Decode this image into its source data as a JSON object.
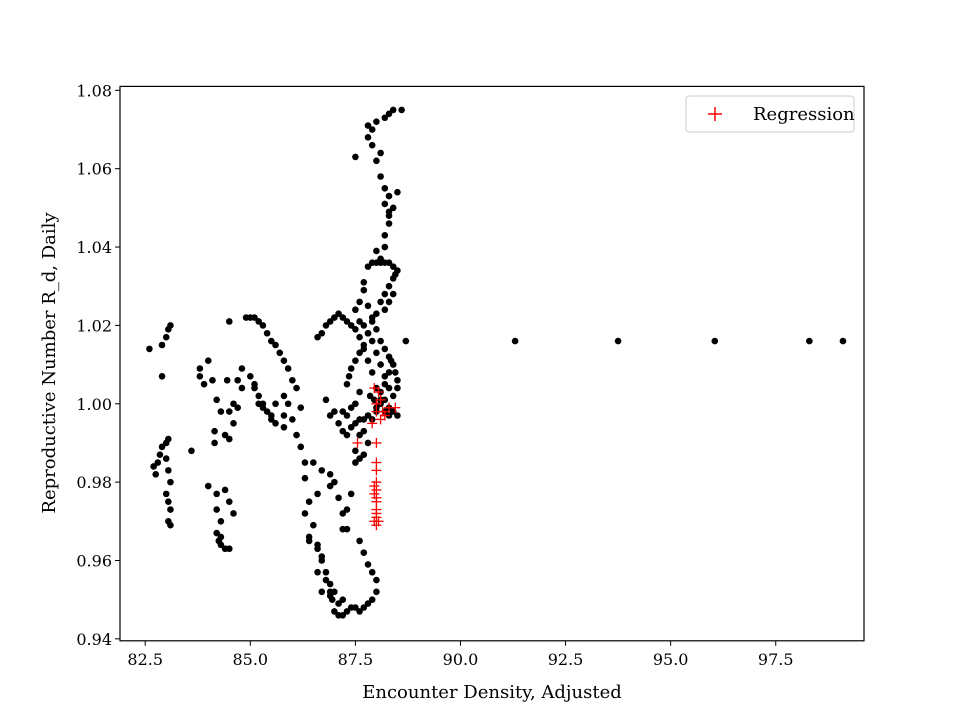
{
  "chart_data": {
    "type": "scatter",
    "title": "",
    "xlabel": "Encounter Density, Adjusted",
    "ylabel": "Reproductive Number R_d, Daily",
    "xlim": [
      81.9,
      99.6
    ],
    "ylim": [
      0.9395,
      1.081
    ],
    "xticks": [
      82.5,
      85.0,
      87.5,
      90.0,
      92.5,
      95.0,
      97.5
    ],
    "xtick_labels": [
      "82.5",
      "85.0",
      "87.5",
      "90.0",
      "92.5",
      "95.0",
      "97.5"
    ],
    "yticks": [
      0.94,
      0.96,
      0.98,
      1.0,
      1.02,
      1.04,
      1.06,
      1.08
    ],
    "ytick_labels": [
      "0.94",
      "0.96",
      "0.98",
      "1.00",
      "1.02",
      "1.04",
      "1.06",
      "1.08"
    ],
    "grid": false,
    "legend_position": "top-right",
    "series": [
      {
        "label": "",
        "marker": "circle",
        "color": "#000000",
        "points": [
          [
            82.6,
            1.014
          ],
          [
            82.9,
            1.015
          ],
          [
            83.0,
            1.017
          ],
          [
            83.05,
            1.019
          ],
          [
            83.1,
            1.02
          ],
          [
            82.9,
            1.007
          ],
          [
            82.7,
            0.984
          ],
          [
            82.75,
            0.982
          ],
          [
            82.8,
            0.985
          ],
          [
            82.85,
            0.987
          ],
          [
            82.9,
            0.989
          ],
          [
            83.0,
            0.99
          ],
          [
            83.05,
            0.991
          ],
          [
            83.0,
            0.986
          ],
          [
            83.05,
            0.983
          ],
          [
            83.1,
            0.98
          ],
          [
            83.0,
            0.977
          ],
          [
            83.05,
            0.975
          ],
          [
            83.1,
            0.973
          ],
          [
            83.05,
            0.97
          ],
          [
            83.1,
            0.969
          ],
          [
            83.6,
            0.988
          ],
          [
            83.8,
            1.009
          ],
          [
            83.8,
            1.007
          ],
          [
            83.9,
            1.005
          ],
          [
            84.0,
            1.011
          ],
          [
            84.1,
            1.006
          ],
          [
            84.2,
            1.001
          ],
          [
            84.3,
            0.998
          ],
          [
            84.15,
            0.993
          ],
          [
            84.15,
            0.99
          ],
          [
            84.4,
            0.992
          ],
          [
            84.5,
            0.991
          ],
          [
            84.6,
            0.995
          ],
          [
            84.5,
            0.998
          ],
          [
            84.6,
            1.0
          ],
          [
            84.7,
            0.999
          ],
          [
            84.0,
            0.979
          ],
          [
            84.2,
            0.977
          ],
          [
            84.4,
            0.978
          ],
          [
            84.5,
            0.975
          ],
          [
            84.6,
            0.972
          ],
          [
            84.2,
            0.973
          ],
          [
            84.3,
            0.97
          ],
          [
            84.2,
            0.967
          ],
          [
            84.25,
            0.965
          ],
          [
            84.3,
            0.964
          ],
          [
            84.4,
            0.963
          ],
          [
            84.5,
            0.963
          ],
          [
            84.3,
            0.966
          ],
          [
            84.45,
            1.006
          ],
          [
            84.7,
            1.006
          ],
          [
            84.5,
            1.021
          ],
          [
            84.8,
            1.009
          ],
          [
            84.8,
            1.004
          ],
          [
            84.9,
            1.022
          ],
          [
            85.0,
            1.022
          ],
          [
            85.1,
            1.022
          ],
          [
            85.2,
            1.021
          ],
          [
            85.3,
            1.02
          ],
          [
            85.4,
            1.018
          ],
          [
            85.5,
            1.016
          ],
          [
            85.6,
            1.015
          ],
          [
            85.7,
            1.013
          ],
          [
            85.8,
            1.011
          ],
          [
            85.9,
            1.009
          ],
          [
            86.0,
            1.006
          ],
          [
            86.1,
            1.004
          ],
          [
            85.0,
            1.007
          ],
          [
            85.1,
            1.005
          ],
          [
            85.2,
            1.002
          ],
          [
            85.3,
            1.0
          ],
          [
            85.4,
            0.998
          ],
          [
            85.5,
            0.997
          ],
          [
            85.6,
            1.0
          ],
          [
            85.8,
            1.002
          ],
          [
            85.9,
            1.0
          ],
          [
            86.0,
            0.996
          ],
          [
            86.1,
            0.992
          ],
          [
            85.8,
            0.994
          ],
          [
            85.5,
            0.996
          ],
          [
            85.6,
            0.995
          ],
          [
            85.1,
            1.004
          ],
          [
            85.2,
            1.0
          ],
          [
            85.3,
            0.999
          ],
          [
            85.8,
            0.997
          ],
          [
            86.2,
            0.999
          ],
          [
            86.2,
            0.989
          ],
          [
            86.3,
            0.985
          ],
          [
            86.3,
            0.981
          ],
          [
            86.4,
            0.975
          ],
          [
            86.5,
            0.969
          ],
          [
            86.3,
            0.972
          ],
          [
            86.4,
            0.965
          ],
          [
            86.6,
            0.963
          ],
          [
            86.7,
            0.96
          ],
          [
            86.6,
            0.957
          ],
          [
            86.8,
            0.955
          ],
          [
            86.7,
            0.952
          ],
          [
            86.9,
            0.951
          ],
          [
            86.5,
            0.985
          ],
          [
            86.7,
            0.983
          ],
          [
            86.9,
            0.982
          ],
          [
            87.0,
            0.98
          ],
          [
            87.1,
            0.976
          ],
          [
            87.2,
            0.972
          ],
          [
            87.3,
            0.968
          ],
          [
            86.6,
            0.977
          ],
          [
            86.9,
            0.979
          ],
          [
            86.4,
            0.966
          ],
          [
            86.6,
            1.017
          ],
          [
            86.7,
            1.018
          ],
          [
            86.8,
            1.02
          ],
          [
            86.9,
            1.021
          ],
          [
            87.0,
            1.022
          ],
          [
            87.1,
            1.023
          ],
          [
            87.2,
            1.022
          ],
          [
            87.3,
            1.021
          ],
          [
            87.4,
            1.02
          ],
          [
            87.5,
            1.019
          ],
          [
            87.6,
            1.017
          ],
          [
            87.7,
            1.014
          ],
          [
            87.8,
            1.011
          ],
          [
            87.9,
            1.008
          ],
          [
            88.0,
            1.004
          ],
          [
            88.1,
            1.001
          ],
          [
            88.2,
            0.998
          ],
          [
            88.3,
            0.997
          ],
          [
            88.4,
            0.998
          ],
          [
            88.5,
            0.997
          ],
          [
            86.8,
            1.001
          ],
          [
            86.9,
            0.997
          ],
          [
            87.0,
            0.998
          ],
          [
            87.1,
            0.995
          ],
          [
            87.2,
            0.993
          ],
          [
            87.3,
            0.992
          ],
          [
            87.4,
            0.994
          ],
          [
            87.5,
            0.995
          ],
          [
            87.6,
            0.996
          ],
          [
            87.7,
            0.996
          ],
          [
            87.8,
            0.997
          ],
          [
            87.9,
            0.996
          ],
          [
            88.0,
            0.998
          ],
          [
            88.1,
            1.0
          ],
          [
            88.2,
            1.001
          ],
          [
            88.3,
            0.999
          ],
          [
            87.3,
            1.005
          ],
          [
            87.35,
            1.007
          ],
          [
            87.4,
            1.009
          ],
          [
            87.5,
            1.011
          ],
          [
            87.6,
            1.013
          ],
          [
            87.7,
            1.015
          ],
          [
            87.8,
            1.018
          ],
          [
            87.9,
            1.021
          ],
          [
            88.0,
            1.023
          ],
          [
            88.1,
            1.026
          ],
          [
            88.2,
            1.028
          ],
          [
            88.3,
            1.03
          ],
          [
            88.4,
            1.032
          ],
          [
            88.45,
            1.033
          ],
          [
            88.5,
            1.034
          ],
          [
            88.4,
            1.035
          ],
          [
            88.3,
            1.036
          ],
          [
            88.2,
            1.036
          ],
          [
            88.1,
            1.036
          ],
          [
            88.0,
            1.036
          ],
          [
            87.9,
            1.036
          ],
          [
            87.8,
            1.035
          ],
          [
            87.7,
            1.031
          ],
          [
            87.7,
            1.029
          ],
          [
            87.6,
            1.026
          ],
          [
            87.5,
            1.024
          ],
          [
            87.6,
            1.021
          ],
          [
            87.7,
            1.02
          ],
          [
            87.8,
            1.018
          ],
          [
            87.9,
            1.016
          ],
          [
            88.0,
            1.013
          ],
          [
            88.1,
            1.01
          ],
          [
            88.2,
            1.007
          ],
          [
            88.3,
            1.004
          ],
          [
            88.4,
            1.002
          ],
          [
            88.5,
            1.004
          ],
          [
            88.5,
            1.006
          ],
          [
            88.45,
            1.008
          ],
          [
            88.4,
            1.01
          ],
          [
            88.3,
            1.012
          ],
          [
            88.2,
            1.014
          ],
          [
            88.1,
            1.016
          ],
          [
            88.0,
            1.019
          ],
          [
            87.9,
            1.022
          ],
          [
            87.8,
            1.025
          ],
          [
            88.3,
            1.026
          ],
          [
            88.2,
            1.024
          ],
          [
            88.4,
            1.028
          ],
          [
            88.7,
            1.016
          ],
          [
            88.1,
            1.037
          ],
          [
            88.2,
            1.04
          ],
          [
            88.2,
            1.043
          ],
          [
            88.3,
            1.046
          ],
          [
            88.3,
            1.049
          ],
          [
            88.2,
            1.051
          ],
          [
            88.4,
            1.05
          ],
          [
            88.3,
            1.053
          ],
          [
            88.2,
            1.055
          ],
          [
            88.1,
            1.058
          ],
          [
            88.0,
            1.062
          ],
          [
            88.1,
            1.064
          ],
          [
            87.9,
            1.066
          ],
          [
            87.8,
            1.068
          ],
          [
            87.9,
            1.07
          ],
          [
            88.0,
            1.072
          ],
          [
            88.2,
            1.073
          ],
          [
            88.3,
            1.074
          ],
          [
            88.4,
            1.075
          ],
          [
            88.6,
            1.075
          ],
          [
            88.5,
            1.054
          ],
          [
            88.3,
            1.048
          ],
          [
            87.5,
            1.063
          ],
          [
            87.8,
            1.071
          ],
          [
            88.0,
            1.039
          ],
          [
            87.4,
            0.999
          ],
          [
            87.5,
            1.0
          ],
          [
            87.6,
            1.003
          ],
          [
            87.3,
            0.997
          ],
          [
            87.2,
            0.998
          ],
          [
            87.5,
            0.985
          ],
          [
            87.6,
            0.986
          ],
          [
            87.7,
            0.987
          ],
          [
            87.8,
            0.99
          ],
          [
            87.7,
            0.993
          ],
          [
            87.6,
            0.992
          ],
          [
            87.5,
            0.988
          ],
          [
            87.4,
            0.977
          ],
          [
            87.3,
            0.973
          ],
          [
            87.2,
            0.968
          ],
          [
            87.6,
            0.965
          ],
          [
            87.7,
            0.962
          ],
          [
            87.8,
            0.959
          ],
          [
            87.9,
            0.957
          ],
          [
            88.0,
            0.955
          ],
          [
            88.0,
            0.952
          ],
          [
            87.9,
            0.95
          ],
          [
            87.8,
            0.949
          ],
          [
            87.7,
            0.948
          ],
          [
            87.6,
            0.947
          ],
          [
            87.5,
            0.948
          ],
          [
            87.4,
            0.948
          ],
          [
            87.3,
            0.947
          ],
          [
            87.2,
            0.946
          ],
          [
            87.1,
            0.946
          ],
          [
            87.0,
            0.947
          ],
          [
            86.95,
            0.95
          ],
          [
            86.9,
            0.952
          ],
          [
            87.1,
            0.949
          ],
          [
            87.2,
            0.95
          ],
          [
            87.0,
            0.952
          ],
          [
            86.9,
            0.954
          ],
          [
            86.8,
            0.957
          ],
          [
            86.7,
            0.961
          ],
          [
            86.6,
            0.964
          ],
          [
            88.0,
            0.999
          ],
          [
            88.1,
            1.003
          ],
          [
            87.95,
            1.001
          ],
          [
            88.2,
            1.005
          ],
          [
            88.3,
            1.008
          ],
          [
            88.35,
            1.011
          ],
          [
            87.85,
            1.002
          ],
          [
            91.3,
            1.016
          ],
          [
            93.75,
            1.016
          ],
          [
            96.05,
            1.016
          ],
          [
            98.3,
            1.016
          ],
          [
            99.1,
            1.016
          ]
        ]
      },
      {
        "label": "Regression",
        "marker": "plus",
        "color": "#ff0000",
        "points": [
          [
            87.55,
            0.99
          ],
          [
            88.0,
            0.99
          ],
          [
            88.0,
            0.985
          ],
          [
            88.0,
            0.983
          ],
          [
            88.0,
            0.98
          ],
          [
            87.95,
            0.979
          ],
          [
            88.0,
            0.978
          ],
          [
            87.95,
            0.977
          ],
          [
            88.0,
            0.976
          ],
          [
            88.0,
            0.975
          ],
          [
            88.0,
            0.972
          ],
          [
            88.0,
            0.971
          ],
          [
            87.95,
            0.97
          ],
          [
            88.0,
            0.969
          ],
          [
            88.05,
            0.97
          ],
          [
            88.0,
            0.973
          ],
          [
            87.9,
            0.995
          ],
          [
            88.1,
            0.996
          ],
          [
            88.15,
            0.998
          ],
          [
            88.3,
            0.999
          ],
          [
            88.45,
            0.999
          ],
          [
            88.0,
            1.0
          ],
          [
            87.95,
            1.004
          ],
          [
            88.05,
            1.003
          ],
          [
            88.0,
            0.998
          ],
          [
            88.1,
            1.001
          ],
          [
            88.2,
            0.997
          ]
        ]
      }
    ]
  }
}
